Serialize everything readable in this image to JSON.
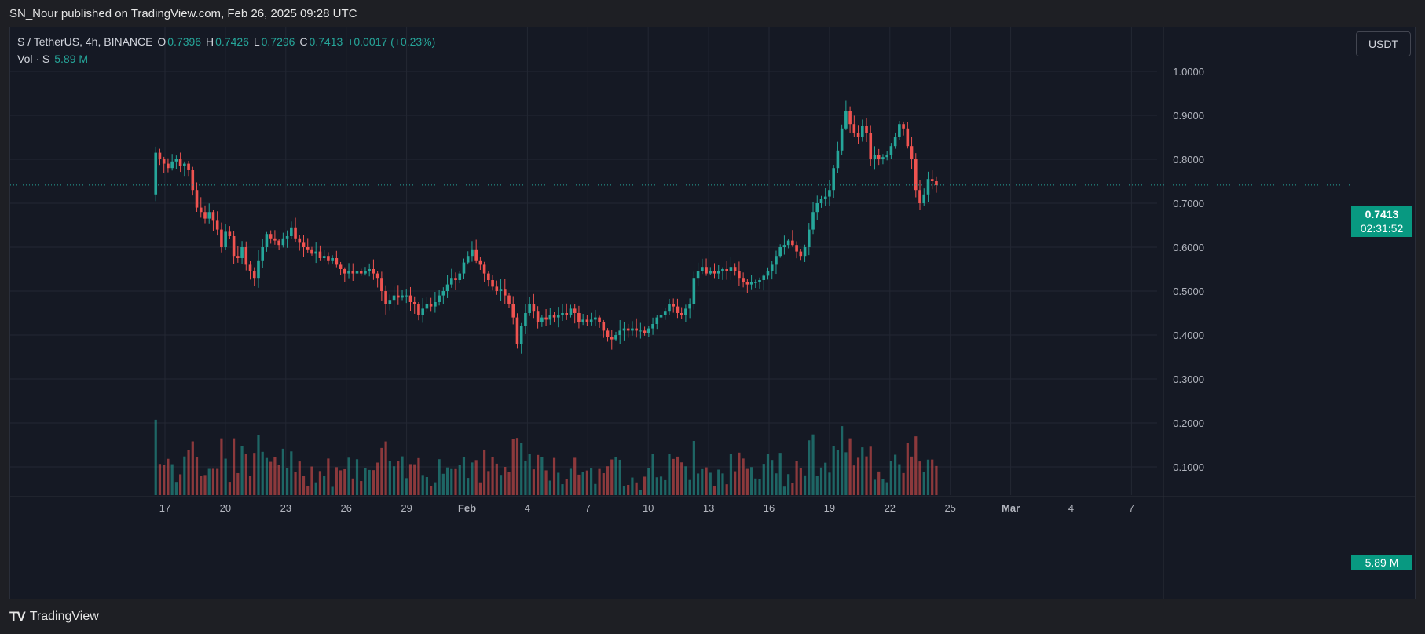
{
  "caption": "SN_Nour published on TradingView.com, Feb 26, 2025 09:28 UTC",
  "legend": {
    "symbol": "S / TetherUS, 4h, BINANCE",
    "o_label": "O",
    "o": "0.7396",
    "h_label": "H",
    "h": "0.7426",
    "l_label": "L",
    "l": "0.7296",
    "c_label": "C",
    "c": "0.7413",
    "change": "+0.0017 (+0.23%)",
    "vol_label": "Vol · S",
    "vol_value": "5.89 M"
  },
  "currency": "USDT",
  "last_price": "0.7413",
  "countdown": "02:31:52",
  "volume_tag": "5.89 M",
  "brand": "TradingView",
  "colors": {
    "up": "#26a69a",
    "down": "#ef5350",
    "background": "#151924",
    "grid": "#232733"
  },
  "chart_data": {
    "type": "candlestick",
    "symbol": "S / TetherUS",
    "interval": "4h",
    "exchange": "BINANCE",
    "y_ticks": [
      "1.0000",
      "0.9000",
      "0.8000",
      "0.7000",
      "0.6000",
      "0.5000",
      "0.4000",
      "0.3000",
      "0.2000",
      "0.1000"
    ],
    "x_ticks": [
      "17",
      "20",
      "23",
      "26",
      "29",
      "Feb",
      "4",
      "7",
      "10",
      "13",
      "16",
      "19",
      "22",
      "25",
      "Mar",
      "4",
      "7"
    ],
    "price_range": [
      0.05,
      1.06
    ],
    "last_price": 0.7413,
    "grid": true,
    "series": [
      {
        "name": "price",
        "close_path": [
          [
            0,
            0.72
          ],
          [
            1,
            0.815
          ],
          [
            2,
            0.8
          ],
          [
            3,
            0.79
          ],
          [
            4,
            0.78
          ],
          [
            5,
            0.795
          ],
          [
            6,
            0.8
          ],
          [
            7,
            0.785
          ],
          [
            8,
            0.79
          ],
          [
            9,
            0.775
          ],
          [
            10,
            0.73
          ],
          [
            11,
            0.69
          ],
          [
            12,
            0.68
          ],
          [
            13,
            0.665
          ],
          [
            14,
            0.68
          ],
          [
            15,
            0.66
          ],
          [
            16,
            0.64
          ],
          [
            17,
            0.6
          ],
          [
            18,
            0.635
          ],
          [
            19,
            0.625
          ],
          [
            20,
            0.58
          ],
          [
            21,
            0.575
          ],
          [
            22,
            0.6
          ],
          [
            23,
            0.56
          ],
          [
            24,
            0.545
          ],
          [
            25,
            0.53
          ],
          [
            26,
            0.57
          ],
          [
            27,
            0.6
          ],
          [
            28,
            0.63
          ],
          [
            29,
            0.62
          ],
          [
            30,
            0.615
          ],
          [
            31,
            0.605
          ],
          [
            32,
            0.62
          ],
          [
            33,
            0.625
          ],
          [
            34,
            0.645
          ],
          [
            35,
            0.62
          ],
          [
            36,
            0.61
          ],
          [
            37,
            0.6
          ],
          [
            38,
            0.595
          ],
          [
            39,
            0.585
          ],
          [
            40,
            0.59
          ],
          [
            41,
            0.575
          ],
          [
            42,
            0.58
          ],
          [
            43,
            0.57
          ],
          [
            44,
            0.575
          ],
          [
            45,
            0.56
          ],
          [
            46,
            0.55
          ],
          [
            47,
            0.54
          ],
          [
            48,
            0.545
          ],
          [
            49,
            0.54
          ],
          [
            50,
            0.545
          ],
          [
            51,
            0.54
          ],
          [
            52,
            0.545
          ],
          [
            53,
            0.55
          ],
          [
            54,
            0.54
          ],
          [
            55,
            0.53
          ],
          [
            56,
            0.5
          ],
          [
            57,
            0.47
          ],
          [
            58,
            0.48
          ],
          [
            59,
            0.49
          ],
          [
            60,
            0.485
          ],
          [
            61,
            0.49
          ],
          [
            62,
            0.49
          ],
          [
            63,
            0.475
          ],
          [
            64,
            0.47
          ],
          [
            65,
            0.445
          ],
          [
            66,
            0.46
          ],
          [
            67,
            0.47
          ],
          [
            68,
            0.465
          ],
          [
            69,
            0.475
          ],
          [
            70,
            0.49
          ],
          [
            71,
            0.5
          ],
          [
            72,
            0.515
          ],
          [
            73,
            0.53
          ],
          [
            74,
            0.525
          ],
          [
            75,
            0.54
          ],
          [
            76,
            0.565
          ],
          [
            77,
            0.58
          ],
          [
            78,
            0.595
          ],
          [
            79,
            0.57
          ],
          [
            80,
            0.56
          ],
          [
            81,
            0.54
          ],
          [
            82,
            0.525
          ],
          [
            83,
            0.51
          ],
          [
            84,
            0.5
          ],
          [
            85,
            0.505
          ],
          [
            86,
            0.49
          ],
          [
            87,
            0.47
          ],
          [
            88,
            0.44
          ],
          [
            89,
            0.38
          ],
          [
            90,
            0.42
          ],
          [
            91,
            0.45
          ],
          [
            92,
            0.47
          ],
          [
            93,
            0.455
          ],
          [
            94,
            0.43
          ],
          [
            95,
            0.44
          ],
          [
            96,
            0.435
          ],
          [
            97,
            0.445
          ],
          [
            98,
            0.44
          ],
          [
            99,
            0.445
          ],
          [
            100,
            0.45
          ],
          [
            101,
            0.445
          ],
          [
            102,
            0.46
          ],
          [
            103,
            0.45
          ],
          [
            104,
            0.43
          ],
          [
            105,
            0.435
          ],
          [
            106,
            0.43
          ],
          [
            107,
            0.435
          ],
          [
            108,
            0.44
          ],
          [
            109,
            0.43
          ],
          [
            110,
            0.41
          ],
          [
            111,
            0.395
          ],
          [
            112,
            0.39
          ],
          [
            113,
            0.4
          ],
          [
            114,
            0.41
          ],
          [
            115,
            0.415
          ],
          [
            116,
            0.41
          ],
          [
            117,
            0.415
          ],
          [
            118,
            0.41
          ],
          [
            119,
            0.41
          ],
          [
            120,
            0.405
          ],
          [
            121,
            0.415
          ],
          [
            122,
            0.425
          ],
          [
            123,
            0.44
          ],
          [
            124,
            0.445
          ],
          [
            125,
            0.455
          ],
          [
            126,
            0.47
          ],
          [
            127,
            0.465
          ],
          [
            128,
            0.45
          ],
          [
            129,
            0.445
          ],
          [
            130,
            0.46
          ],
          [
            131,
            0.47
          ],
          [
            132,
            0.53
          ],
          [
            133,
            0.545
          ],
          [
            134,
            0.555
          ],
          [
            135,
            0.54
          ],
          [
            136,
            0.545
          ],
          [
            137,
            0.54
          ],
          [
            138,
            0.545
          ],
          [
            139,
            0.55
          ],
          [
            140,
            0.545
          ],
          [
            141,
            0.555
          ],
          [
            142,
            0.545
          ],
          [
            143,
            0.53
          ],
          [
            144,
            0.52
          ],
          [
            145,
            0.515
          ],
          [
            146,
            0.52
          ],
          [
            147,
            0.52
          ],
          [
            148,
            0.525
          ],
          [
            149,
            0.535
          ],
          [
            150,
            0.545
          ],
          [
            151,
            0.56
          ],
          [
            152,
            0.58
          ],
          [
            153,
            0.6
          ],
          [
            154,
            0.605
          ],
          [
            155,
            0.615
          ],
          [
            156,
            0.605
          ],
          [
            157,
            0.59
          ],
          [
            158,
            0.58
          ],
          [
            159,
            0.6
          ],
          [
            160,
            0.64
          ],
          [
            161,
            0.68
          ],
          [
            162,
            0.7
          ],
          [
            163,
            0.71
          ],
          [
            164,
            0.715
          ],
          [
            165,
            0.73
          ],
          [
            166,
            0.78
          ],
          [
            167,
            0.82
          ],
          [
            168,
            0.87
          ],
          [
            169,
            0.91
          ],
          [
            170,
            0.88
          ],
          [
            171,
            0.86
          ],
          [
            172,
            0.85
          ],
          [
            173,
            0.875
          ],
          [
            174,
            0.86
          ],
          [
            175,
            0.8
          ],
          [
            176,
            0.81
          ],
          [
            177,
            0.8
          ],
          [
            178,
            0.805
          ],
          [
            179,
            0.81
          ],
          [
            180,
            0.83
          ],
          [
            181,
            0.85
          ],
          [
            182,
            0.88
          ],
          [
            183,
            0.87
          ],
          [
            184,
            0.83
          ],
          [
            185,
            0.8
          ],
          [
            186,
            0.73
          ],
          [
            187,
            0.7
          ],
          [
            188,
            0.72
          ],
          [
            189,
            0.755
          ],
          [
            190,
            0.75
          ],
          [
            191,
            0.741
          ]
        ]
      }
    ]
  }
}
